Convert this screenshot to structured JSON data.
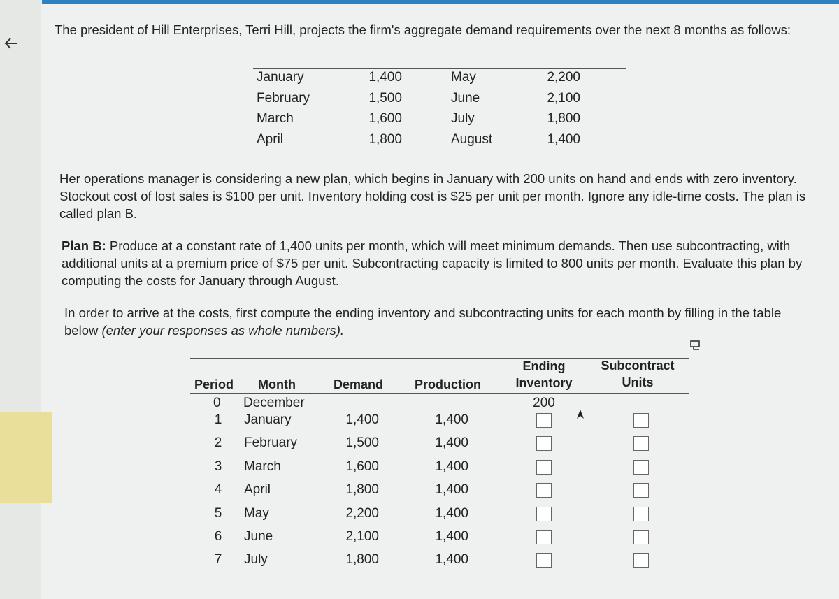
{
  "intro": "The president of Hill Enterprises, Terri Hill, projects the firm's aggregate demand requirements over the next 8 months as follows:",
  "demand_table": {
    "rows": [
      [
        "January",
        "1,400",
        "May",
        "2,200"
      ],
      [
        "February",
        "1,500",
        "June",
        "2,100"
      ],
      [
        "March",
        "1,600",
        "July",
        "1,800"
      ],
      [
        "April",
        "1,800",
        "August",
        "1,400"
      ]
    ]
  },
  "plan_intro": "Her operations manager is considering a new plan, which begins in January with 200 units on hand and ends with zero inventory. Stockout cost of lost sales is $100 per unit. Inventory holding cost is $25 per unit per month. Ignore any idle-time costs. The plan is called plan B.",
  "plan_b": {
    "label": "Plan B:",
    "text": " Produce at a constant rate of 1,400 units per month, which will meet minimum demands. Then use subcontracting, with additional units at a premium price of $75 per unit. Subcontracting capacity is limited to 800 units per month. Evaluate this plan by computing the costs for January through August."
  },
  "instruction": {
    "text": "In order to arrive at the costs, first compute the ending inventory and subcontracting units for each month by filling in the table below ",
    "note": "(enter your responses as whole numbers)."
  },
  "table": {
    "headers": [
      "Period",
      "Month",
      "Demand",
      "Production",
      "Ending",
      "Inventory",
      "Subcontract",
      "Units"
    ],
    "start": [
      "0",
      "December",
      "200"
    ],
    "rows": [
      [
        "1",
        "January",
        "1,400",
        "1,400"
      ],
      [
        "2",
        "February",
        "1,500",
        "1,400"
      ],
      [
        "3",
        "March",
        "1,600",
        "1,400"
      ],
      [
        "4",
        "April",
        "1,800",
        "1,400"
      ],
      [
        "5",
        "May",
        "2,200",
        "1,400"
      ],
      [
        "6",
        "June",
        "2,100",
        "1,400"
      ],
      [
        "7",
        "July",
        "1,800",
        "1,400"
      ]
    ]
  }
}
